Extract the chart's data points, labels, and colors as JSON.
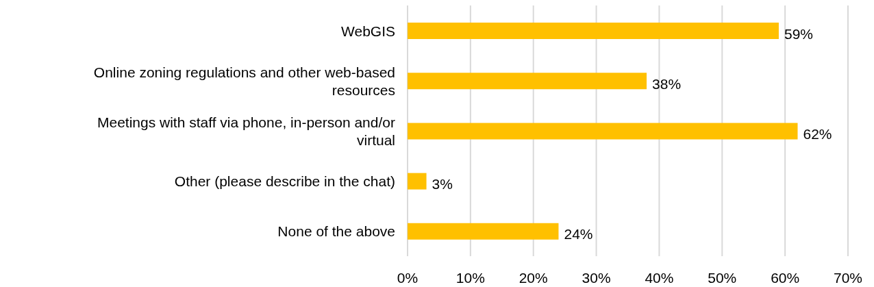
{
  "chart_data": {
    "type": "bar",
    "orientation": "horizontal",
    "categories": [
      "WebGIS",
      "Online zoning regulations and other web-based resources",
      "Meetings with staff via phone, in-person and/or virtual",
      "Other (please describe in the chat)",
      "None of the above"
    ],
    "values": [
      59,
      38,
      62,
      3,
      24
    ],
    "value_labels": [
      "59%",
      "38%",
      "62%",
      "3%",
      "24%"
    ],
    "color": "#ffc000",
    "xlim": [
      0,
      70
    ],
    "xticks": [
      {
        "value": 0,
        "label": "0%"
      },
      {
        "value": 10,
        "label": "10%"
      },
      {
        "value": 20,
        "label": "20%"
      },
      {
        "value": 30,
        "label": "30%"
      },
      {
        "value": 40,
        "label": "40%"
      },
      {
        "value": 50,
        "label": "50%"
      },
      {
        "value": 60,
        "label": "60%"
      },
      {
        "value": 70,
        "label": "70%"
      }
    ],
    "grid": "x",
    "legend": false
  }
}
